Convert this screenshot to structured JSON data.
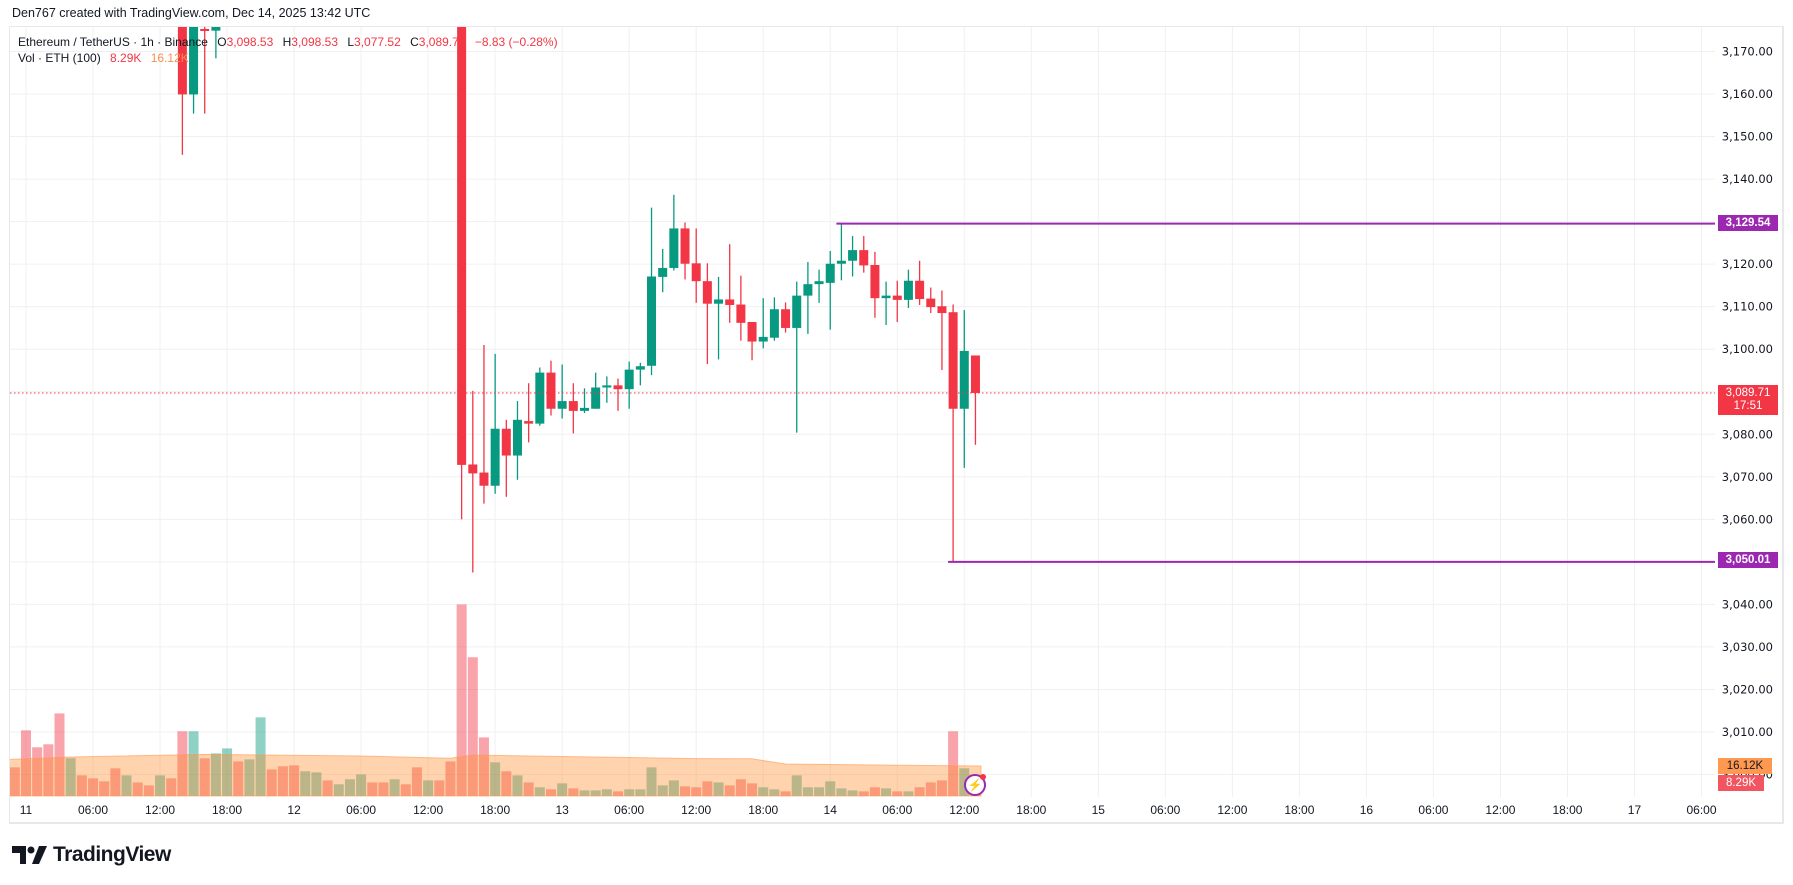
{
  "credit": "Den767 created with TradingView.com, Dec 14, 2025 13:42 UTC",
  "legend": {
    "symbol": "Ethereum / TetherUS · 1h · Binance",
    "o_label": "O",
    "o": "3,098.53",
    "h_label": "H",
    "h": "3,098.53",
    "l_label": "L",
    "l": "3,077.52",
    "c_label": "C",
    "c": "3,089.71",
    "change": "−8.83 (−0.28%)",
    "vol_label": "Vol · ETH (100)",
    "vol": "8.29K",
    "vol_ma": "16.12K"
  },
  "price_labels": {
    "high_line": "3,129.54",
    "low_line": "3,050.01",
    "last_price": "3,089.71",
    "countdown": "17:51",
    "vol_ma": "16.12K",
    "vol": "8.29K"
  },
  "logo_text": "TradingView",
  "colors": {
    "up": "#089981",
    "down": "#f23645",
    "line": "#9c27b0",
    "ma": "#ff9f50"
  },
  "chart_data": {
    "type": "candlestick",
    "title": "Ethereum / TetherUS · 1h · Binance",
    "hour_origin": "Dec 11 00:00",
    "ylim": [
      2999,
      3176
    ],
    "y_ticks": [
      "3,170.00",
      "3,160.00",
      "3,150.00",
      "3,140.00",
      "3,130.00",
      "3,120.00",
      "3,110.00",
      "3,100.00",
      "3,090.00",
      "3,080.00",
      "3,070.00",
      "3,060.00",
      "3,050.00",
      "3,040.00",
      "3,030.00",
      "3,020.00",
      "3,010.00",
      "3,000.00"
    ],
    "y_tick_values": [
      3170,
      3160,
      3150,
      3140,
      3130,
      3120,
      3110,
      3100,
      3090,
      3080,
      3070,
      3060,
      3050,
      3040,
      3030,
      3020,
      3010,
      3000
    ],
    "x_ticks": [
      {
        "h": 0,
        "label": "11"
      },
      {
        "h": 6,
        "label": "06:00"
      },
      {
        "h": 12,
        "label": "12:00"
      },
      {
        "h": 18,
        "label": "18:00"
      },
      {
        "h": 24,
        "label": "12"
      },
      {
        "h": 30,
        "label": "06:00"
      },
      {
        "h": 36,
        "label": "12:00"
      },
      {
        "h": 42,
        "label": "18:00"
      },
      {
        "h": 48,
        "label": "13"
      },
      {
        "h": 54,
        "label": "06:00"
      },
      {
        "h": 60,
        "label": "12:00"
      },
      {
        "h": 66,
        "label": "18:00"
      },
      {
        "h": 72,
        "label": "14"
      },
      {
        "h": 78,
        "label": "06:00"
      },
      {
        "h": 84,
        "label": "12:00"
      },
      {
        "h": 90,
        "label": "18:00"
      },
      {
        "h": 96,
        "label": "15"
      },
      {
        "h": 102,
        "label": "06:00"
      },
      {
        "h": 108,
        "label": "12:00"
      },
      {
        "h": 114,
        "label": "18:00"
      },
      {
        "h": 120,
        "label": "16"
      },
      {
        "h": 126,
        "label": "06:00"
      },
      {
        "h": 132,
        "label": "12:00"
      },
      {
        "h": 138,
        "label": "18:00"
      },
      {
        "h": 144,
        "label": "17"
      },
      {
        "h": 150,
        "label": "06:00"
      }
    ],
    "candles_ohlc_by_hour": [
      [
        14,
        3185,
        3195,
        3145.7,
        3159.9
      ],
      [
        15,
        3159.9,
        3190,
        3155.4,
        3180
      ],
      [
        16,
        3175.3,
        3180,
        3155.4,
        3174.9
      ],
      [
        17,
        3174.9,
        3180,
        3168.4,
        3176
      ],
      [
        39,
        3215,
        3220,
        3060,
        3072.8
      ],
      [
        40,
        3072.9,
        3090.2,
        3047.5,
        3070.8
      ],
      [
        41,
        3071,
        3101,
        3063.7,
        3067.9
      ],
      [
        42,
        3067.9,
        3098.9,
        3066,
        3081.3
      ],
      [
        43,
        3081.3,
        3083.4,
        3065.3,
        3075
      ],
      [
        44,
        3075,
        3087.8,
        3069.3,
        3083.4
      ],
      [
        45,
        3083.1,
        3092,
        3078.1,
        3082.5
      ],
      [
        46,
        3082.5,
        3095.7,
        3082,
        3094.5
      ],
      [
        47,
        3094.5,
        3097.3,
        3084.4,
        3086
      ],
      [
        48,
        3086,
        3096.4,
        3083.7,
        3087.8
      ],
      [
        49,
        3087.8,
        3092,
        3080.2,
        3085.5
      ],
      [
        50,
        3085.5,
        3090.8,
        3085,
        3086.2
      ],
      [
        51,
        3086,
        3094.5,
        3086,
        3091
      ],
      [
        52,
        3091,
        3093.6,
        3087.4,
        3091.5
      ],
      [
        53,
        3091.5,
        3093.1,
        3085.5,
        3090.6
      ],
      [
        54,
        3090.6,
        3097.1,
        3086,
        3095.2
      ],
      [
        55,
        3095.2,
        3096.8,
        3091.5,
        3096
      ],
      [
        56,
        3096.1,
        3133.3,
        3093.9,
        3117.1
      ],
      [
        57,
        3117,
        3123.6,
        3113.4,
        3119.1
      ],
      [
        58,
        3119.1,
        3136.3,
        3118.5,
        3128.4
      ],
      [
        59,
        3128.4,
        3129.8,
        3116.4,
        3120.1
      ],
      [
        60,
        3120.2,
        3128.4,
        3110.9,
        3116
      ],
      [
        61,
        3116,
        3120.2,
        3096.5,
        3110.7
      ],
      [
        62,
        3110.7,
        3117,
        3097.6,
        3111.7
      ],
      [
        63,
        3111.7,
        3124.7,
        3106.2,
        3110.4
      ],
      [
        64,
        3110.5,
        3117.3,
        3102,
        3106.2
      ],
      [
        65,
        3106.4,
        3106.4,
        3097.4,
        3101.8
      ],
      [
        66,
        3101.8,
        3112,
        3100.2,
        3102.9
      ],
      [
        67,
        3102.7,
        3112.2,
        3102,
        3109.4
      ],
      [
        68,
        3109.4,
        3111,
        3103.9,
        3105
      ],
      [
        69,
        3105,
        3115.9,
        3080.4,
        3112.6
      ],
      [
        70,
        3112.6,
        3120.5,
        3103.6,
        3115.3
      ],
      [
        71,
        3115.3,
        3118.7,
        3110.9,
        3116
      ],
      [
        72,
        3115.6,
        3123.1,
        3104.6,
        3120.1
      ],
      [
        73,
        3120.1,
        3129.54,
        3116.2,
        3120.8
      ],
      [
        74,
        3120.8,
        3126.6,
        3117.1,
        3123.3
      ],
      [
        75,
        3123.3,
        3126.6,
        3118,
        3119.7
      ],
      [
        76,
        3119.8,
        3122.9,
        3107.4,
        3112
      ],
      [
        77,
        3112,
        3115.9,
        3105.7,
        3112.6
      ],
      [
        78,
        3112.6,
        3116.1,
        3106.4,
        3111.6
      ],
      [
        79,
        3111.6,
        3118.7,
        3109.7,
        3116.1
      ],
      [
        80,
        3116.1,
        3120.8,
        3110.4,
        3111.8
      ],
      [
        81,
        3111.9,
        3114.5,
        3108.5,
        3109.9
      ],
      [
        82,
        3110.1,
        3113.8,
        3095.1,
        3108.5
      ],
      [
        83,
        3108.7,
        3110.5,
        3050.01,
        3086
      ],
      [
        84,
        3086,
        3109.2,
        3072.1,
        3099.6
      ],
      [
        85,
        3098.53,
        3098.53,
        3077.52,
        3089.71
      ]
    ],
    "hlines": [
      {
        "price": 3129.54,
        "from_h": 73,
        "label": "3,129.54"
      },
      {
        "price": 3050.01,
        "from_h": 83,
        "label": "3,050.01"
      }
    ],
    "last_price": 3089.71,
    "volume_unit": "K ETH",
    "volume_start_hour": -1,
    "volume": [
      15.4,
      35.3,
      26.2,
      27.8,
      44.4,
      20.3,
      11.1,
      9.5,
      7.9,
      14.9,
      11.1,
      7.3,
      5.7,
      11.1,
      9.5,
      34.8,
      34.8,
      20.3,
      22.9,
      25.6,
      18.6,
      19.7,
      42.3,
      14.3,
      16,
      16.5,
      13.3,
      12.7,
      8.4,
      6.3,
      9,
      11.6,
      7.3,
      7.3,
      9,
      6.3,
      15.4,
      8.4,
      8.4,
      18.6,
      103,
      74.6,
      31.5,
      18.1,
      13.3,
      11.1,
      7.3,
      4.7,
      3.6,
      6.8,
      4.1,
      3,
      3,
      3.6,
      2.5,
      3.6,
      3.6,
      15.4,
      5.7,
      8.4,
      5.2,
      4.7,
      7.9,
      7.3,
      5.7,
      9,
      6.8,
      4.7,
      3.6,
      2.5,
      11.1,
      4.7,
      4.7,
      7.9,
      4.1,
      3,
      2.5,
      4.7,
      4.1,
      2.5,
      2.5,
      4.7,
      7.3,
      8.4,
      34.8,
      14.9,
      8.29
    ],
    "volume_up": [
      0,
      0,
      0,
      0,
      0,
      1,
      0,
      0,
      0,
      0,
      1,
      0,
      0,
      1,
      0,
      0,
      1,
      0,
      1,
      1,
      0,
      1,
      1,
      0,
      0,
      0,
      1,
      1,
      0,
      1,
      1,
      1,
      0,
      0,
      1,
      0,
      0,
      1,
      0,
      0,
      0,
      0,
      0,
      1,
      0,
      1,
      0,
      1,
      0,
      1,
      0,
      1,
      1,
      1,
      0,
      1,
      1,
      1,
      1,
      1,
      0,
      0,
      0,
      1,
      0,
      0,
      0,
      1,
      1,
      0,
      1,
      1,
      1,
      1,
      1,
      1,
      0,
      0,
      1,
      0,
      1,
      0,
      0,
      0,
      0,
      1,
      0
    ],
    "volume_ma_points": [
      [
        -1,
        19.7
      ],
      [
        4,
        21
      ],
      [
        16,
        22.4
      ],
      [
        30,
        21.5
      ],
      [
        38,
        20.3
      ],
      [
        40,
        22
      ],
      [
        45,
        21.5
      ],
      [
        60,
        20.1
      ],
      [
        65,
        20
      ],
      [
        68,
        17.2
      ],
      [
        85,
        16.12
      ]
    ]
  }
}
